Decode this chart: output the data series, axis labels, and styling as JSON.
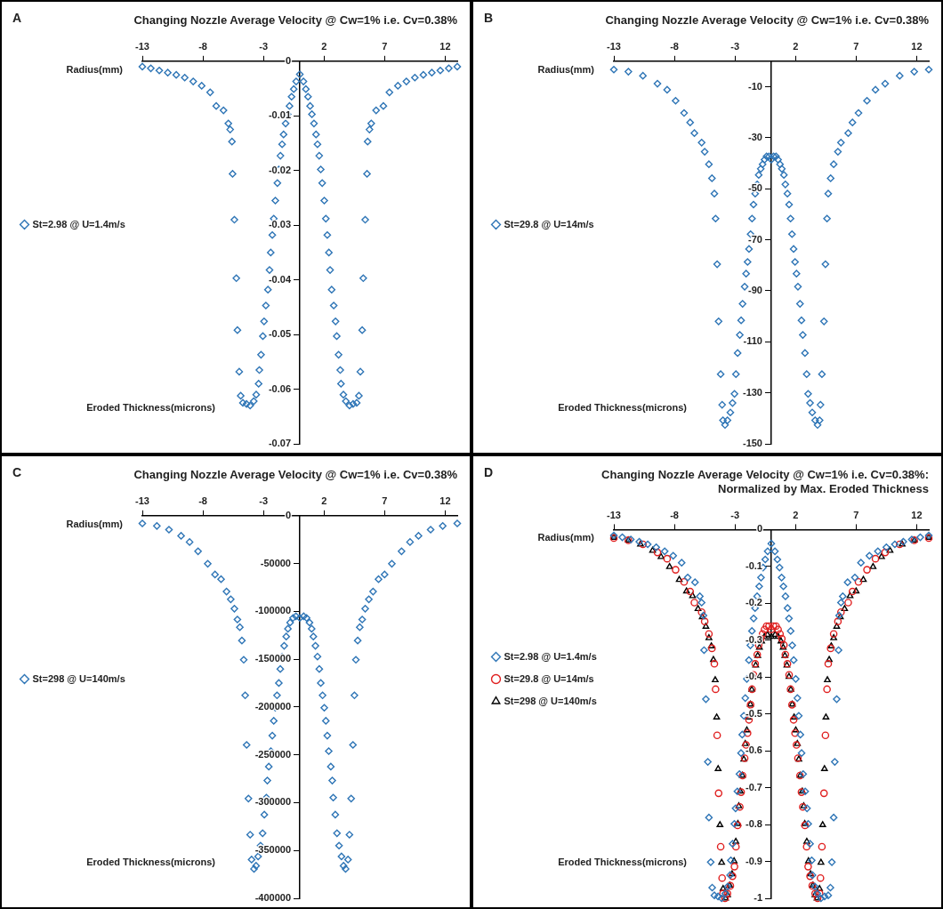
{
  "chart_data": [
    {
      "type": "scatter",
      "title": "Changing Nozzle Average Velocity @ Cw=1% i.e. Cv=0.38%",
      "xlabel": "Radius(mm)",
      "ylabel": "Eroded Thickness(microns)",
      "annotations": [
        "A"
      ],
      "legend": "left",
      "xlim": [
        -13,
        13
      ],
      "xticks": [
        -13,
        -8,
        -3,
        2,
        7,
        12
      ],
      "ylim": [
        -0.07,
        0
      ],
      "yticks": [
        0,
        -0.01,
        -0.02,
        -0.03,
        -0.04,
        -0.05,
        -0.06,
        -0.07
      ],
      "x": [
        -13,
        -12.3,
        -11.6,
        -10.9,
        -10.2,
        -9.5,
        -8.8,
        -8.1,
        -7.4,
        -6.9,
        -6.3,
        -5.9,
        -5.75,
        -5.6,
        -5.55,
        -5.4,
        -5.24,
        -5.15,
        -5,
        -4.88,
        -4.7,
        -4.4,
        -4.1,
        -3.8,
        -3.6,
        -3.4,
        -3.34,
        -3.2,
        -3.05,
        -2.95,
        -2.8,
        -2.63,
        -2.5,
        -2.4,
        -2.27,
        -2.15,
        -2.02,
        -1.85,
        -1.73,
        -1.6,
        -1.46,
        -1.34,
        -1.17,
        -1,
        -0.85,
        -0.68,
        -0.5,
        -0.3,
        0,
        0.3,
        0.5,
        0.68,
        0.85,
        1,
        1.17,
        1.34,
        1.46,
        1.6,
        1.73,
        1.85,
        2.02,
        2.15,
        2.27,
        2.4,
        2.5,
        2.63,
        2.8,
        2.95,
        3.05,
        3.2,
        3.34,
        3.4,
        3.6,
        3.8,
        4.1,
        4.4,
        4.7,
        4.88,
        5,
        5.15,
        5.24,
        5.4,
        5.55,
        5.6,
        5.75,
        5.9,
        6.3,
        6.9,
        7.4,
        8.1,
        8.8,
        9.5,
        10.2,
        10.9,
        11.6,
        12.3,
        13
      ],
      "series": [
        {
          "name": "St=2.98 @ U=1.4m/s",
          "color": "#2e75b6",
          "marker": "diamond",
          "values": [
            -0.001,
            -0.0013,
            -0.0017,
            -0.0021,
            -0.0025,
            -0.003,
            -0.0037,
            -0.0045,
            -0.0057,
            -0.0082,
            -0.009,
            -0.0114,
            -0.0125,
            -0.0147,
            -0.0206,
            -0.029,
            -0.0397,
            -0.0492,
            -0.0568,
            -0.0612,
            -0.0625,
            -0.0627,
            -0.063,
            -0.0622,
            -0.061,
            -0.059,
            -0.0565,
            -0.0537,
            -0.0503,
            -0.0476,
            -0.0447,
            -0.0418,
            -0.0382,
            -0.035,
            -0.0318,
            -0.0288,
            -0.0255,
            -0.0223,
            -0.0198,
            -0.0173,
            -0.0152,
            -0.0134,
            -0.0114,
            -0.0097,
            -0.0082,
            -0.0065,
            -0.0051,
            -0.0037,
            -0.0024,
            -0.0037,
            -0.0051,
            -0.0065,
            -0.0082,
            -0.0097,
            -0.0114,
            -0.0134,
            -0.0152,
            -0.0173,
            -0.0198,
            -0.0223,
            -0.0255,
            -0.0288,
            -0.0318,
            -0.035,
            -0.0382,
            -0.0418,
            -0.0447,
            -0.0476,
            -0.0503,
            -0.0537,
            -0.0565,
            -0.059,
            -0.061,
            -0.0622,
            -0.063,
            -0.0627,
            -0.0625,
            -0.0612,
            -0.0568,
            -0.0492,
            -0.0397,
            -0.029,
            -0.0206,
            -0.0147,
            -0.0125,
            -0.0114,
            -0.009,
            -0.0082,
            -0.0057,
            -0.0045,
            -0.0037,
            -0.003,
            -0.0025,
            -0.0021,
            -0.0017,
            -0.0013,
            -0.001
          ]
        }
      ]
    },
    {
      "type": "scatter",
      "title": "Changing Nozzle Average Velocity @ Cw=1% i.e. Cv=0.38%",
      "xlabel": "Radius(mm)",
      "ylabel": "Eroded Thickness(microns)",
      "annotations": [
        "B"
      ],
      "legend": "left",
      "xlim": [
        -13,
        13
      ],
      "xticks": [
        -13,
        -8,
        -3,
        2,
        7,
        12
      ],
      "ylim": [
        -150,
        0
      ],
      "yticks": [
        -10,
        -30,
        -50,
        -70,
        -90,
        -110,
        -130,
        -150
      ],
      "x": [
        -13,
        -11.8,
        -10.6,
        -9.4,
        -8.6,
        -7.9,
        -7.2,
        -6.7,
        -6.35,
        -5.75,
        -5.5,
        -5.15,
        -4.9,
        -4.7,
        -4.6,
        -4.47,
        -4.35,
        -4.18,
        -4.06,
        -3.99,
        -3.82,
        -3.62,
        -3.38,
        -3.2,
        -3.04,
        -2.92,
        -2.78,
        -2.6,
        -2.49,
        -2.37,
        -2.2,
        -2.08,
        -1.96,
        -1.84,
        -1.71,
        -1.59,
        -1.47,
        -1.33,
        -1.16,
        -1.04,
        -0.87,
        -0.72,
        -0.56,
        -0.39,
        -0.19,
        0,
        0.19,
        0.39,
        0.56,
        0.72,
        0.87,
        1.04,
        1.16,
        1.33,
        1.47,
        1.59,
        1.71,
        1.84,
        1.96,
        2.08,
        2.2,
        2.37,
        2.49,
        2.6,
        2.78,
        2.92,
        3.04,
        3.2,
        3.38,
        3.62,
        3.82,
        3.99,
        4.06,
        4.18,
        4.35,
        4.47,
        4.6,
        4.7,
        4.9,
        5.15,
        5.5,
        5.75,
        6.35,
        6.7,
        7.2,
        7.9,
        8.6,
        9.4,
        10.6,
        11.8,
        13
      ],
      "series": [
        {
          "name": "St=29.8 @ U=14m/s",
          "color": "#2e75b6",
          "marker": "diamond",
          "values": [
            -3.3,
            -4.1,
            -5.7,
            -8.8,
            -11.2,
            -15.5,
            -20.3,
            -24,
            -28.2,
            -31.9,
            -35.5,
            -40.4,
            -45.9,
            -51.9,
            -61.7,
            -79.6,
            -102,
            -122.7,
            -134.7,
            -140.8,
            -142.6,
            -140.8,
            -137.7,
            -134,
            -130.4,
            -122.7,
            -114.4,
            -107.3,
            -101.6,
            -95.1,
            -88.4,
            -83.3,
            -78.7,
            -73.6,
            -67.8,
            -61.7,
            -56.2,
            -51.9,
            -48.3,
            -44.6,
            -42.2,
            -40.4,
            -38.6,
            -37.3,
            -37.3,
            -38.6,
            -37.3,
            -37.3,
            -38.6,
            -40.4,
            -42.2,
            -44.6,
            -48.3,
            -51.9,
            -56.2,
            -61.7,
            -67.8,
            -73.6,
            -78.7,
            -83.3,
            -88.4,
            -95.1,
            -101.6,
            -107.3,
            -114.4,
            -122.7,
            -130.4,
            -134,
            -137.7,
            -140.8,
            -142.6,
            -140.8,
            -134.7,
            -122.7,
            -102,
            -79.6,
            -61.7,
            -51.9,
            -45.9,
            -40.4,
            -35.5,
            -31.9,
            -28.2,
            -24,
            -20.3,
            -15.5,
            -11.2,
            -8.8,
            -5.7,
            -4.1,
            -3.3
          ]
        }
      ]
    },
    {
      "type": "scatter",
      "title": "Changing Nozzle Average Velocity @ Cw=1% i.e. Cv=0.38%",
      "xlabel": "Radius(mm)",
      "ylabel": "Eroded Thickness(microns)",
      "annotations": [
        "C"
      ],
      "legend": "left",
      "xlim": [
        -13,
        13
      ],
      "xticks": [
        -13,
        -8,
        -3,
        2,
        7,
        12
      ],
      "ylim": [
        -400000,
        0
      ],
      "yticks": [
        0,
        -50000,
        -100000,
        -150000,
        -200000,
        -250000,
        -300000,
        -350000,
        -400000
      ],
      "x": [
        -13,
        -11.8,
        -10.8,
        -9.8,
        -9.1,
        -8.4,
        -7.6,
        -7,
        -6.5,
        -6.05,
        -5.7,
        -5.4,
        -5.15,
        -4.95,
        -4.78,
        -4.63,
        -4.51,
        -4.39,
        -4.24,
        -4.1,
        -3.98,
        -3.78,
        -3.61,
        -3.44,
        -3.24,
        -3.07,
        -2.93,
        -2.76,
        -2.68,
        -2.56,
        -2.39,
        -2.27,
        -2.15,
        -2.02,
        -1.88,
        -1.73,
        -1.61,
        -1.46,
        -1.29,
        -1.12,
        -0.98,
        -0.8,
        -0.56,
        -0.32,
        0,
        0.32,
        0.56,
        0.8,
        0.98,
        1.12,
        1.29,
        1.46,
        1.61,
        1.73,
        1.88,
        2.02,
        2.15,
        2.27,
        2.39,
        2.56,
        2.68,
        2.76,
        2.93,
        3.07,
        3.24,
        3.44,
        3.61,
        3.78,
        3.98,
        4.1,
        4.24,
        4.39,
        4.51,
        4.63,
        4.78,
        4.95,
        5.15,
        5.4,
        5.7,
        6.05,
        6.5,
        7,
        7.6,
        8.4,
        9.1,
        9.8,
        10.8,
        11.8,
        13
      ],
      "series": [
        {
          "name": "St=298 @ U=140m/s",
          "color": "#2e75b6",
          "marker": "diamond",
          "values": [
            -8100,
            -10700,
            -14600,
            -21000,
            -27500,
            -37200,
            -50200,
            -61500,
            -66400,
            -79300,
            -87400,
            -97200,
            -108500,
            -116600,
            -130500,
            -150600,
            -187800,
            -239600,
            -295700,
            -333500,
            -359500,
            -369200,
            -366000,
            -356200,
            -344900,
            -332000,
            -312500,
            -294700,
            -276900,
            -262300,
            -246100,
            -229900,
            -214400,
            -200800,
            -187800,
            -174900,
            -160300,
            -147300,
            -136000,
            -126300,
            -118200,
            -111700,
            -106900,
            -105200,
            -106900,
            -105200,
            -106900,
            -111700,
            -118200,
            -126300,
            -136000,
            -147300,
            -160300,
            -174900,
            -187800,
            -200800,
            -214400,
            -229900,
            -246100,
            -262300,
            -276900,
            -294700,
            -312500,
            -332000,
            -344900,
            -356200,
            -366000,
            -369200,
            -359500,
            -333500,
            -295700,
            -239600,
            -187800,
            -150600,
            -130500,
            -116600,
            -108500,
            -97200,
            -87400,
            -79300,
            -66400,
            -61500,
            -50200,
            -37200,
            -27500,
            -21000,
            -14600,
            -10700,
            -8100
          ]
        }
      ]
    },
    {
      "type": "scatter",
      "title": "Changing Nozzle Average Velocity @ Cw=1% i.e. Cv=0.38%: Normalized by Max. Eroded Thickness",
      "xlabel": "Radius(mm)",
      "ylabel": "Eroded Thickness(microns)",
      "annotations": [
        "D"
      ],
      "legend": "left",
      "xlim": [
        -13,
        13
      ],
      "xticks": [
        -13,
        -8,
        -3,
        2,
        7,
        12
      ],
      "ylim": [
        -1,
        0
      ],
      "yticks": [
        0,
        -0.1,
        -0.2,
        -0.3,
        -0.4,
        -0.5,
        -0.6,
        -0.7,
        -0.8,
        -0.9,
        -1
      ],
      "series": [
        {
          "name": "St=2.98 @ U=1.4m/s",
          "color": "#2e75b6",
          "marker": "diamond",
          "x": [
            -13,
            -12.3,
            -11.6,
            -10.9,
            -10.2,
            -9.5,
            -8.8,
            -8.1,
            -7.4,
            -6.9,
            -6.3,
            -5.9,
            -5.75,
            -5.6,
            -5.55,
            -5.4,
            -5.24,
            -5.15,
            -5,
            -4.88,
            -4.7,
            -4.4,
            -4.1,
            -3.8,
            -3.6,
            -3.4,
            -3.34,
            -3.2,
            -3.05,
            -2.95,
            -2.8,
            -2.63,
            -2.5,
            -2.4,
            -2.27,
            -2.15,
            -2.02,
            -1.85,
            -1.73,
            -1.6,
            -1.46,
            -1.34,
            -1.17,
            -1,
            -0.85,
            -0.68,
            -0.5,
            -0.3,
            0,
            0.3,
            0.5,
            0.68,
            0.85,
            1,
            1.17,
            1.34,
            1.46,
            1.6,
            1.73,
            1.85,
            2.02,
            2.15,
            2.27,
            2.4,
            2.5,
            2.63,
            2.8,
            2.95,
            3.05,
            3.2,
            3.34,
            3.4,
            3.6,
            3.8,
            4.1,
            4.4,
            4.7,
            4.88,
            5,
            5.15,
            5.24,
            5.4,
            5.55,
            5.6,
            5.75,
            5.9,
            6.3,
            6.9,
            7.4,
            8.1,
            8.8,
            9.5,
            10.2,
            10.9,
            11.6,
            12.3,
            13
          ],
          "values": [
            -0.016,
            -0.021,
            -0.027,
            -0.033,
            -0.04,
            -0.048,
            -0.059,
            -0.071,
            -0.09,
            -0.13,
            -0.143,
            -0.181,
            -0.198,
            -0.233,
            -0.327,
            -0.46,
            -0.63,
            -0.781,
            -0.902,
            -0.971,
            -0.992,
            -0.995,
            -1,
            -0.987,
            -0.968,
            -0.937,
            -0.897,
            -0.852,
            -0.798,
            -0.756,
            -0.71,
            -0.663,
            -0.606,
            -0.556,
            -0.505,
            -0.457,
            -0.405,
            -0.354,
            -0.314,
            -0.275,
            -0.241,
            -0.213,
            -0.181,
            -0.154,
            -0.13,
            -0.103,
            -0.081,
            -0.059,
            -0.038,
            -0.059,
            -0.081,
            -0.103,
            -0.13,
            -0.154,
            -0.181,
            -0.213,
            -0.241,
            -0.275,
            -0.314,
            -0.354,
            -0.405,
            -0.457,
            -0.505,
            -0.556,
            -0.606,
            -0.663,
            -0.71,
            -0.756,
            -0.798,
            -0.852,
            -0.897,
            -0.937,
            -0.968,
            -0.987,
            -1,
            -0.995,
            -0.992,
            -0.971,
            -0.902,
            -0.781,
            -0.63,
            -0.46,
            -0.327,
            -0.233,
            -0.198,
            -0.181,
            -0.143,
            -0.13,
            -0.09,
            -0.071,
            -0.059,
            -0.048,
            -0.04,
            -0.033,
            -0.027,
            -0.021,
            -0.016
          ]
        },
        {
          "name": "St=29.8 @ U=14m/s",
          "color": "#e02020",
          "marker": "circle",
          "x": [
            -13,
            -11.8,
            -10.6,
            -9.4,
            -8.6,
            -7.9,
            -7.2,
            -6.7,
            -6.35,
            -5.75,
            -5.5,
            -5.15,
            -4.9,
            -4.7,
            -4.6,
            -4.47,
            -4.35,
            -4.18,
            -4.06,
            -3.99,
            -3.82,
            -3.62,
            -3.38,
            -3.2,
            -3.04,
            -2.92,
            -2.78,
            -2.6,
            -2.49,
            -2.37,
            -2.2,
            -2.08,
            -1.96,
            -1.84,
            -1.71,
            -1.59,
            -1.47,
            -1.33,
            -1.16,
            -1.04,
            -0.87,
            -0.72,
            -0.56,
            -0.39,
            -0.19,
            0,
            0.19,
            0.39,
            0.56,
            0.72,
            0.87,
            1.04,
            1.16,
            1.33,
            1.47,
            1.59,
            1.71,
            1.84,
            1.96,
            2.08,
            2.2,
            2.37,
            2.49,
            2.6,
            2.78,
            2.92,
            3.04,
            3.2,
            3.38,
            3.62,
            3.82,
            3.99,
            4.06,
            4.18,
            4.35,
            4.47,
            4.6,
            4.7,
            4.9,
            5.15,
            5.5,
            5.75,
            6.35,
            6.7,
            7.2,
            7.9,
            8.6,
            9.4,
            10.6,
            11.8,
            13
          ],
          "values": [
            -0.023,
            -0.029,
            -0.04,
            -0.062,
            -0.079,
            -0.109,
            -0.142,
            -0.168,
            -0.198,
            -0.224,
            -0.249,
            -0.283,
            -0.322,
            -0.364,
            -0.433,
            -0.558,
            -0.715,
            -0.86,
            -0.945,
            -0.987,
            -1,
            -0.987,
            -0.966,
            -0.94,
            -0.914,
            -0.86,
            -0.802,
            -0.752,
            -0.712,
            -0.667,
            -0.62,
            -0.584,
            -0.552,
            -0.516,
            -0.475,
            -0.433,
            -0.394,
            -0.364,
            -0.339,
            -0.313,
            -0.296,
            -0.283,
            -0.271,
            -0.262,
            -0.262,
            -0.271,
            -0.262,
            -0.262,
            -0.271,
            -0.283,
            -0.296,
            -0.313,
            -0.339,
            -0.364,
            -0.394,
            -0.433,
            -0.475,
            -0.516,
            -0.552,
            -0.584,
            -0.62,
            -0.667,
            -0.712,
            -0.752,
            -0.802,
            -0.86,
            -0.914,
            -0.94,
            -0.966,
            -0.987,
            -1,
            -0.987,
            -0.945,
            -0.86,
            -0.715,
            -0.558,
            -0.433,
            -0.364,
            -0.322,
            -0.283,
            -0.249,
            -0.224,
            -0.198,
            -0.168,
            -0.142,
            -0.109,
            -0.079,
            -0.062,
            -0.04,
            -0.029,
            -0.023
          ]
        },
        {
          "name": "St=298 @ U=140m/s",
          "color": "#000000",
          "marker": "triangle",
          "x": [
            -13,
            -11.8,
            -10.8,
            -9.8,
            -9.1,
            -8.4,
            -7.6,
            -7,
            -6.5,
            -6.05,
            -5.7,
            -5.4,
            -5.15,
            -4.95,
            -4.78,
            -4.63,
            -4.51,
            -4.39,
            -4.24,
            -4.1,
            -3.98,
            -3.78,
            -3.61,
            -3.44,
            -3.24,
            -3.07,
            -2.93,
            -2.76,
            -2.68,
            -2.56,
            -2.39,
            -2.27,
            -2.15,
            -2.02,
            -1.88,
            -1.73,
            -1.61,
            -1.46,
            -1.29,
            -1.12,
            -0.98,
            -0.8,
            -0.56,
            -0.32,
            0,
            0.32,
            0.56,
            0.8,
            0.98,
            1.12,
            1.29,
            1.46,
            1.61,
            1.73,
            1.88,
            2.02,
            2.15,
            2.27,
            2.39,
            2.56,
            2.68,
            2.76,
            2.93,
            3.07,
            3.24,
            3.44,
            3.61,
            3.78,
            3.98,
            4.1,
            4.24,
            4.39,
            4.51,
            4.63,
            4.78,
            4.95,
            5.15,
            5.4,
            5.7,
            6.05,
            6.5,
            7,
            7.6,
            8.4,
            9.1,
            9.8,
            10.8,
            11.8,
            13
          ],
          "values": [
            -0.022,
            -0.029,
            -0.04,
            -0.057,
            -0.074,
            -0.101,
            -0.136,
            -0.167,
            -0.18,
            -0.215,
            -0.237,
            -0.263,
            -0.294,
            -0.316,
            -0.353,
            -0.408,
            -0.509,
            -0.649,
            -0.801,
            -0.903,
            -0.974,
            -1,
            -0.991,
            -0.965,
            -0.934,
            -0.899,
            -0.846,
            -0.798,
            -0.75,
            -0.71,
            -0.667,
            -0.623,
            -0.581,
            -0.544,
            -0.509,
            -0.474,
            -0.434,
            -0.399,
            -0.368,
            -0.342,
            -0.32,
            -0.303,
            -0.29,
            -0.285,
            -0.29,
            -0.285,
            -0.29,
            -0.303,
            -0.32,
            -0.342,
            -0.368,
            -0.399,
            -0.434,
            -0.474,
            -0.509,
            -0.544,
            -0.581,
            -0.623,
            -0.667,
            -0.71,
            -0.75,
            -0.798,
            -0.846,
            -0.899,
            -0.934,
            -0.965,
            -0.991,
            -1,
            -0.974,
            -0.903,
            -0.801,
            -0.649,
            -0.509,
            -0.408,
            -0.353,
            -0.316,
            -0.294,
            -0.263,
            -0.237,
            -0.215,
            -0.18,
            -0.167,
            -0.136,
            -0.101,
            -0.074,
            -0.057,
            -0.04,
            -0.029,
            -0.022
          ]
        }
      ]
    }
  ]
}
